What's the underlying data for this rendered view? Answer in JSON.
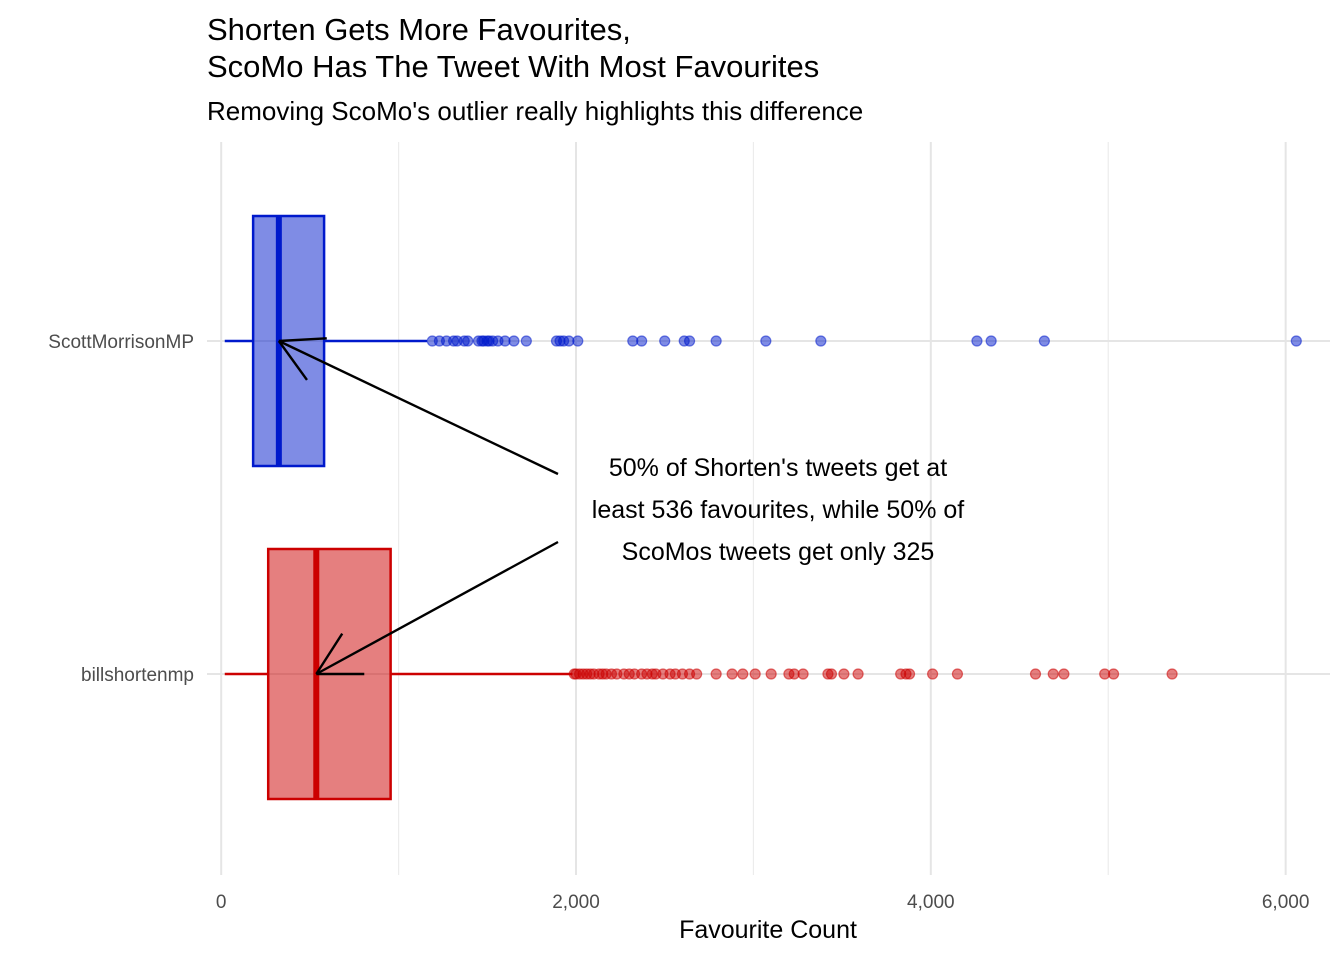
{
  "chart_data": {
    "type": "boxplot",
    "title_lines": [
      "Shorten Gets More Favourites,",
      "ScoMo Has The Tweet With Most Favourites"
    ],
    "subtitle": "Removing ScoMo's outlier really highlights this difference",
    "xlabel": "Favourite Count",
    "ylabel": "",
    "orientation": "horizontal",
    "xlim": [
      -80,
      6250
    ],
    "x_ticks": [
      0,
      2000,
      4000,
      6000
    ],
    "x_tick_labels": [
      "0",
      "2,000",
      "4,000",
      "6,000"
    ],
    "x_minor_ticks": [
      1000,
      3000,
      5000
    ],
    "grid": true,
    "legend": "none",
    "categories": [
      "ScottMorrisonMP",
      "billshortenmp"
    ],
    "series": [
      {
        "category": "ScottMorrisonMP",
        "color": "#0019cc",
        "fill": "#0019cc",
        "whisker_low": 20,
        "q1": 180,
        "median": 325,
        "q3": 580,
        "whisker_high": 1160,
        "outliers": [
          1190,
          1230,
          1270,
          1310,
          1330,
          1370,
          1390,
          1450,
          1470,
          1480,
          1500,
          1510,
          1530,
          1560,
          1600,
          1650,
          1720,
          1890,
          1910,
          1930,
          1960,
          2010,
          2320,
          2370,
          2500,
          2610,
          2640,
          2790,
          3070,
          3380,
          4260,
          4340,
          4640,
          6060
        ]
      },
      {
        "category": "billshortenmp",
        "color": "#cc0000",
        "fill": "#cc0000",
        "whisker_low": 20,
        "q1": 265,
        "median": 536,
        "q3": 955,
        "whisker_high": 1980,
        "outliers": [
          1990,
          2000,
          2020,
          2040,
          2060,
          2080,
          2100,
          2130,
          2150,
          2170,
          2200,
          2230,
          2270,
          2300,
          2330,
          2370,
          2400,
          2430,
          2450,
          2490,
          2530,
          2560,
          2600,
          2640,
          2680,
          2790,
          2880,
          2940,
          3010,
          3100,
          3200,
          3230,
          3280,
          3420,
          3440,
          3510,
          3590,
          3830,
          3860,
          3880,
          4010,
          4150,
          4590,
          4690,
          4750,
          4980,
          5030,
          5360
        ]
      }
    ],
    "annotation": {
      "lines": [
        "50% of Shorten's tweets get at",
        "least 536 favourites, while 50% of",
        "ScoMos tweets get only 325"
      ],
      "arrow_targets": [
        {
          "category": "ScottMorrisonMP",
          "value": 325
        },
        {
          "category": "billshortenmp",
          "value": 536
        }
      ]
    }
  }
}
